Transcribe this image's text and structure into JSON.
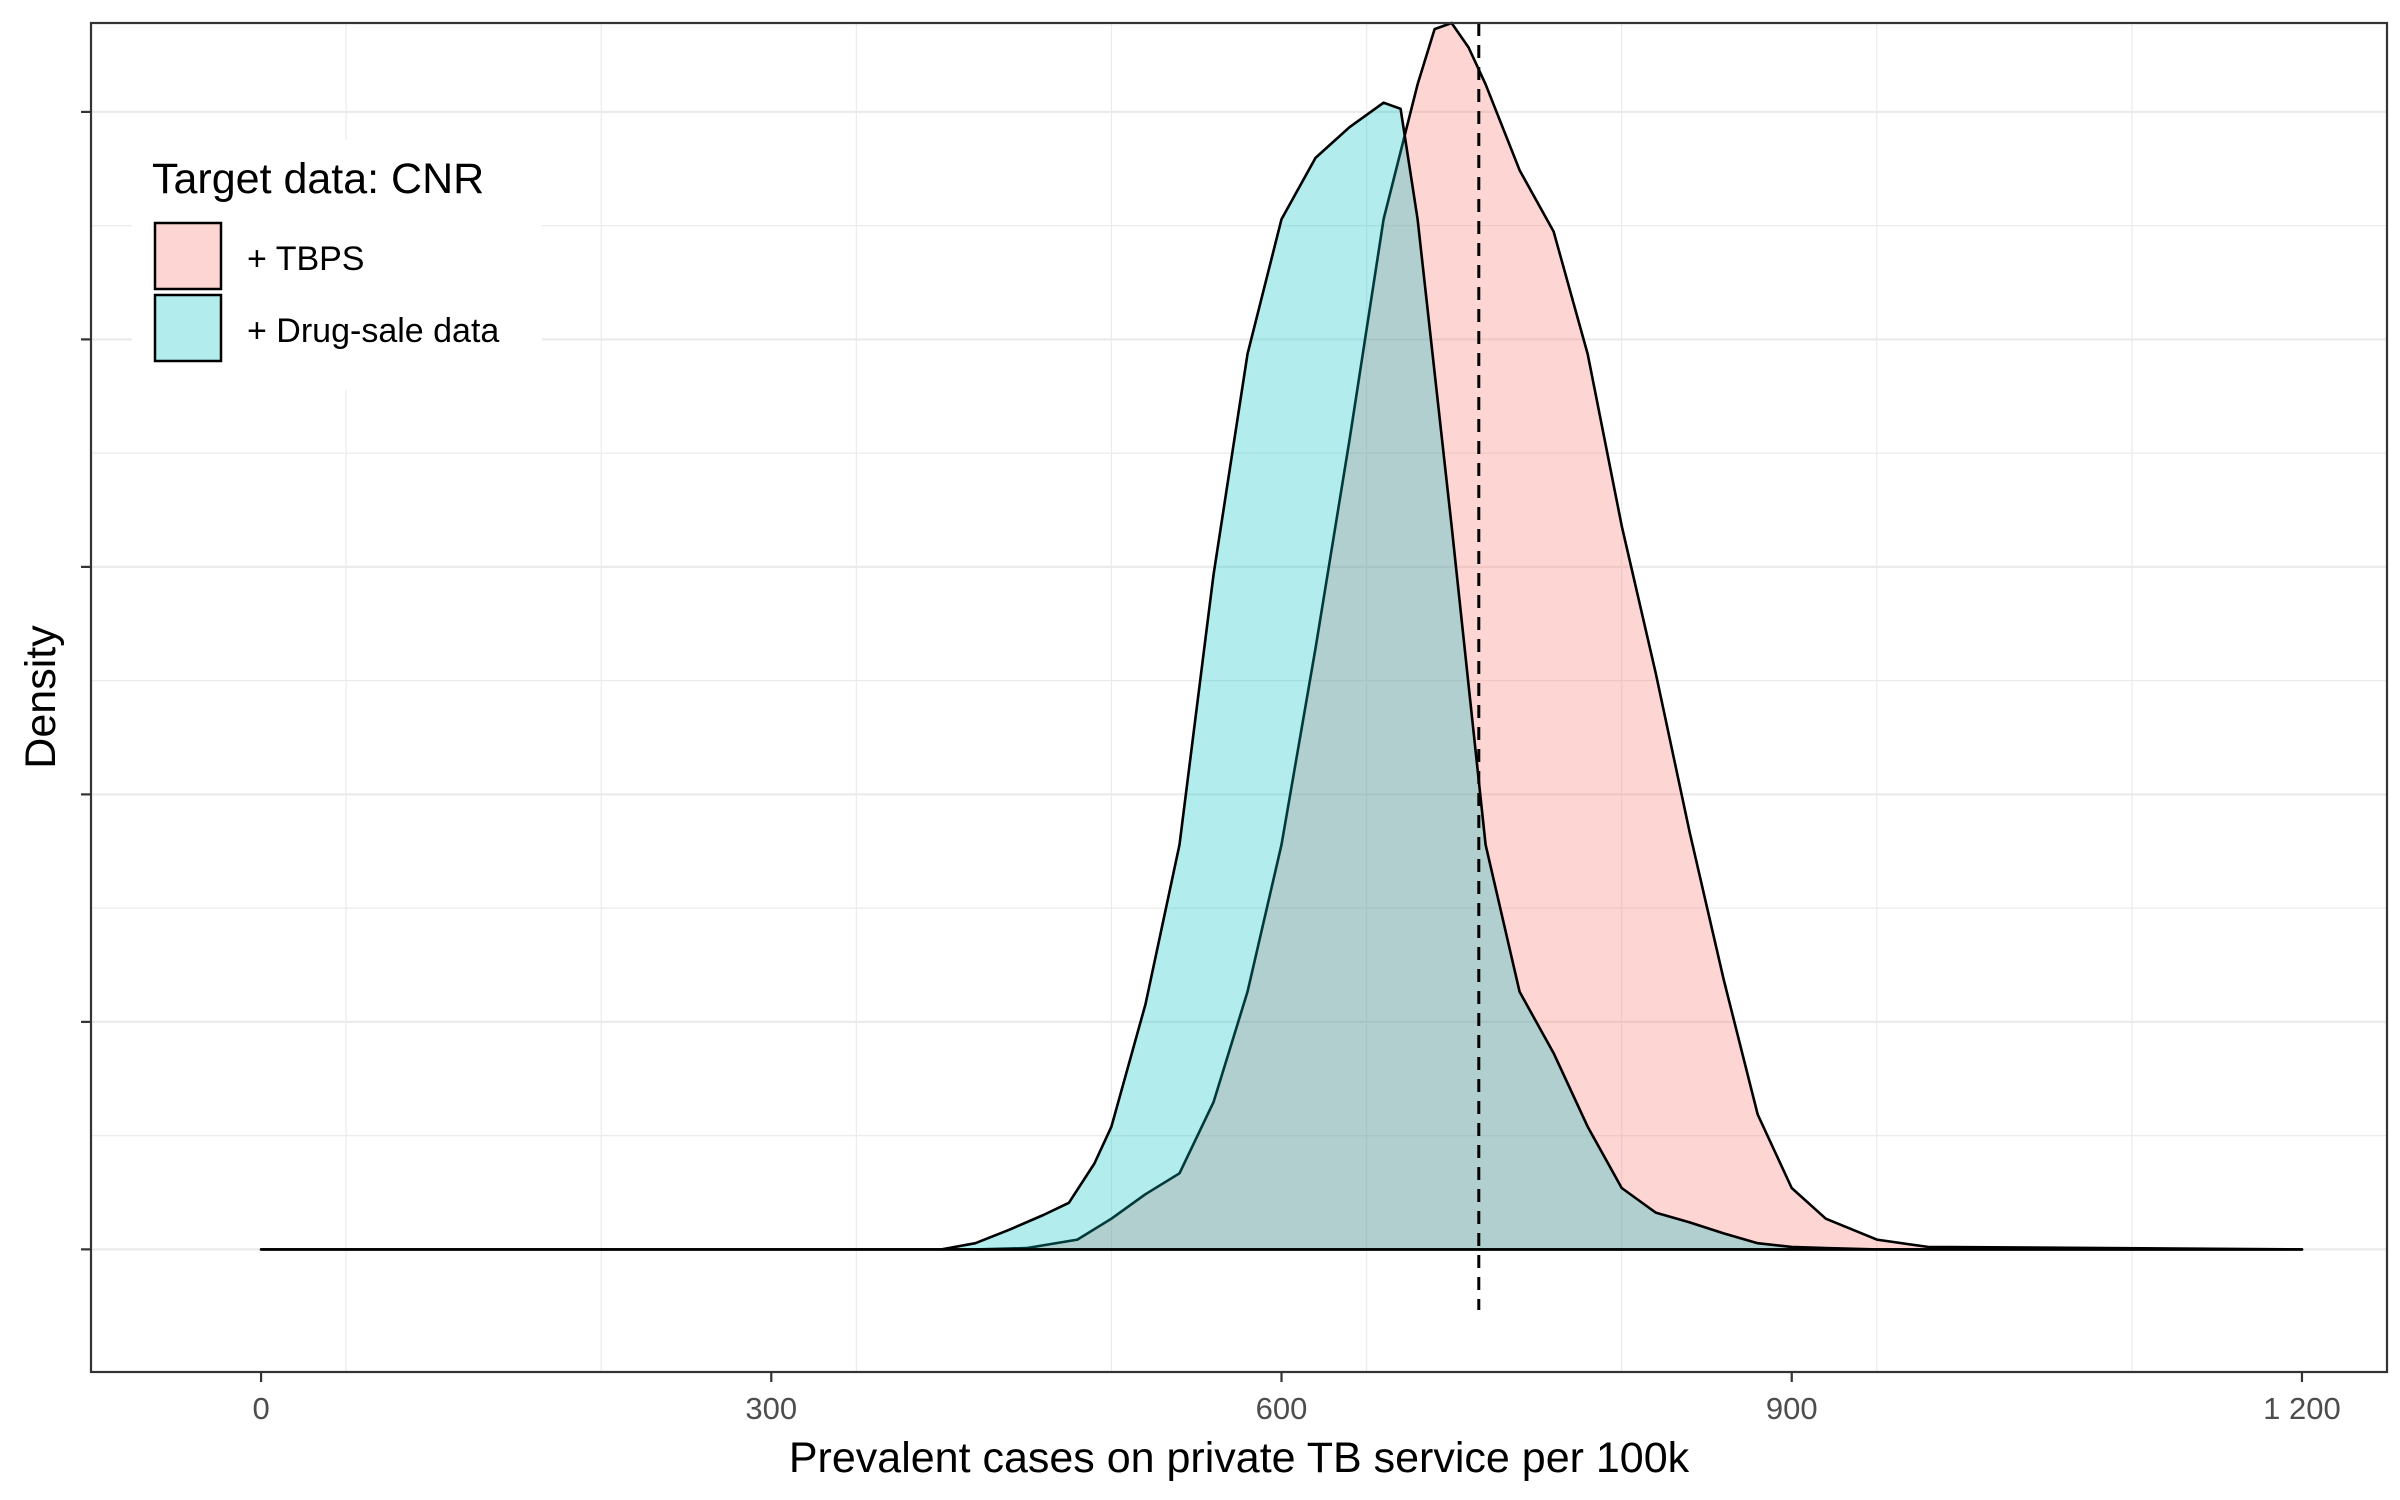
{
  "chart_data": {
    "type": "area",
    "title": "",
    "xlabel": "Prevalent cases on private TB service per 100k",
    "ylabel": "Density",
    "xlim": [
      -100,
      1250
    ],
    "ylim": [
      -0.1,
      1.0
    ],
    "x_ticks": [
      0,
      300,
      600,
      900,
      1200
    ],
    "x_tick_labels": [
      "0",
      "300",
      "600",
      "900",
      "1 200"
    ],
    "y_tick_labels_shown": false,
    "grid": true,
    "legend": {
      "title": "Target data: CNR",
      "position": "top-left",
      "entries": [
        "+ TBPS",
        "+ Drug-sale data"
      ]
    },
    "reference_line": {
      "x": 716,
      "style": "dashed"
    },
    "series": [
      {
        "name": "+ TBPS",
        "color": "#F8766D",
        "fill_opacity": 0.3,
        "x": [
          0,
          420,
          450,
          480,
          500,
          520,
          540,
          560,
          580,
          600,
          620,
          640,
          660,
          680,
          690,
          700,
          710,
          720,
          740,
          760,
          780,
          800,
          820,
          840,
          860,
          880,
          900,
          920,
          950,
          980,
          1200
        ],
        "y": [
          0,
          0,
          0.001,
          0.008,
          0.025,
          0.045,
          0.062,
          0.12,
          0.21,
          0.33,
          0.49,
          0.66,
          0.84,
          0.95,
          0.995,
          1.0,
          0.98,
          0.95,
          0.88,
          0.83,
          0.73,
          0.59,
          0.47,
          0.34,
          0.22,
          0.11,
          0.05,
          0.025,
          0.008,
          0.002,
          0
        ]
      },
      {
        "name": "+ Drug-sale data",
        "color": "#00BFC4",
        "fill_opacity": 0.3,
        "x": [
          0,
          400,
          420,
          440,
          460,
          475,
          490,
          500,
          520,
          540,
          560,
          580,
          600,
          620,
          640,
          660,
          670,
          680,
          700,
          720,
          740,
          760,
          780,
          800,
          820,
          840,
          860,
          880,
          900,
          920,
          950,
          1200
        ],
        "y": [
          0,
          0,
          0.005,
          0.016,
          0.028,
          0.038,
          0.07,
          0.1,
          0.2,
          0.33,
          0.55,
          0.73,
          0.84,
          0.89,
          0.915,
          0.935,
          0.93,
          0.84,
          0.59,
          0.33,
          0.21,
          0.16,
          0.1,
          0.05,
          0.03,
          0.022,
          0.013,
          0.005,
          0.002,
          0.001,
          0,
          0
        ]
      }
    ]
  }
}
